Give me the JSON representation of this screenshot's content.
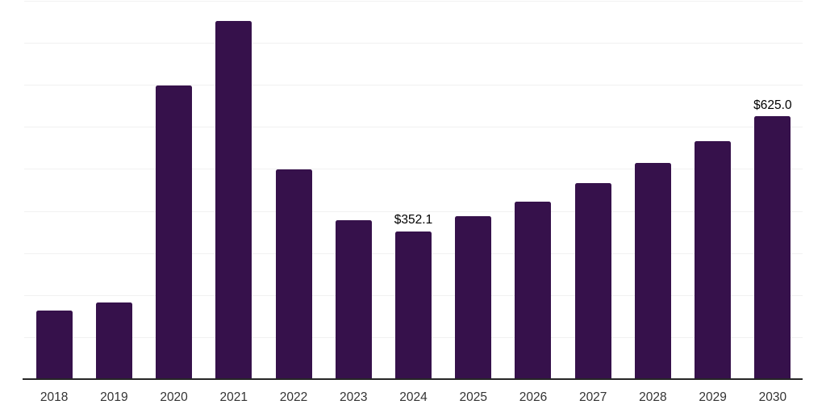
{
  "chart_data": {
    "type": "bar",
    "title": "",
    "xlabel": "",
    "ylabel": "",
    "categories": [
      "2018",
      "2019",
      "2020",
      "2021",
      "2022",
      "2023",
      "2024",
      "2025",
      "2026",
      "2027",
      "2028",
      "2029",
      "2030"
    ],
    "values": [
      163,
      182,
      698,
      852,
      499,
      379,
      352.1,
      388,
      423,
      466,
      514,
      566,
      625
    ],
    "labeled_points": [
      {
        "category": "2024",
        "text": "$352.1"
      },
      {
        "category": "2030",
        "text": "$625.0"
      }
    ],
    "ylim": [
      0,
      900
    ],
    "gridline_step": 100,
    "grid": "horizontal-only",
    "legend": "none",
    "y_tick_labels_visible": false
  },
  "colors": {
    "bar": "#36114B",
    "gridline": "#f1f1f1",
    "axis": "#262626",
    "tick_label": "#333333",
    "data_label": "#000000",
    "background": "#ffffff"
  }
}
